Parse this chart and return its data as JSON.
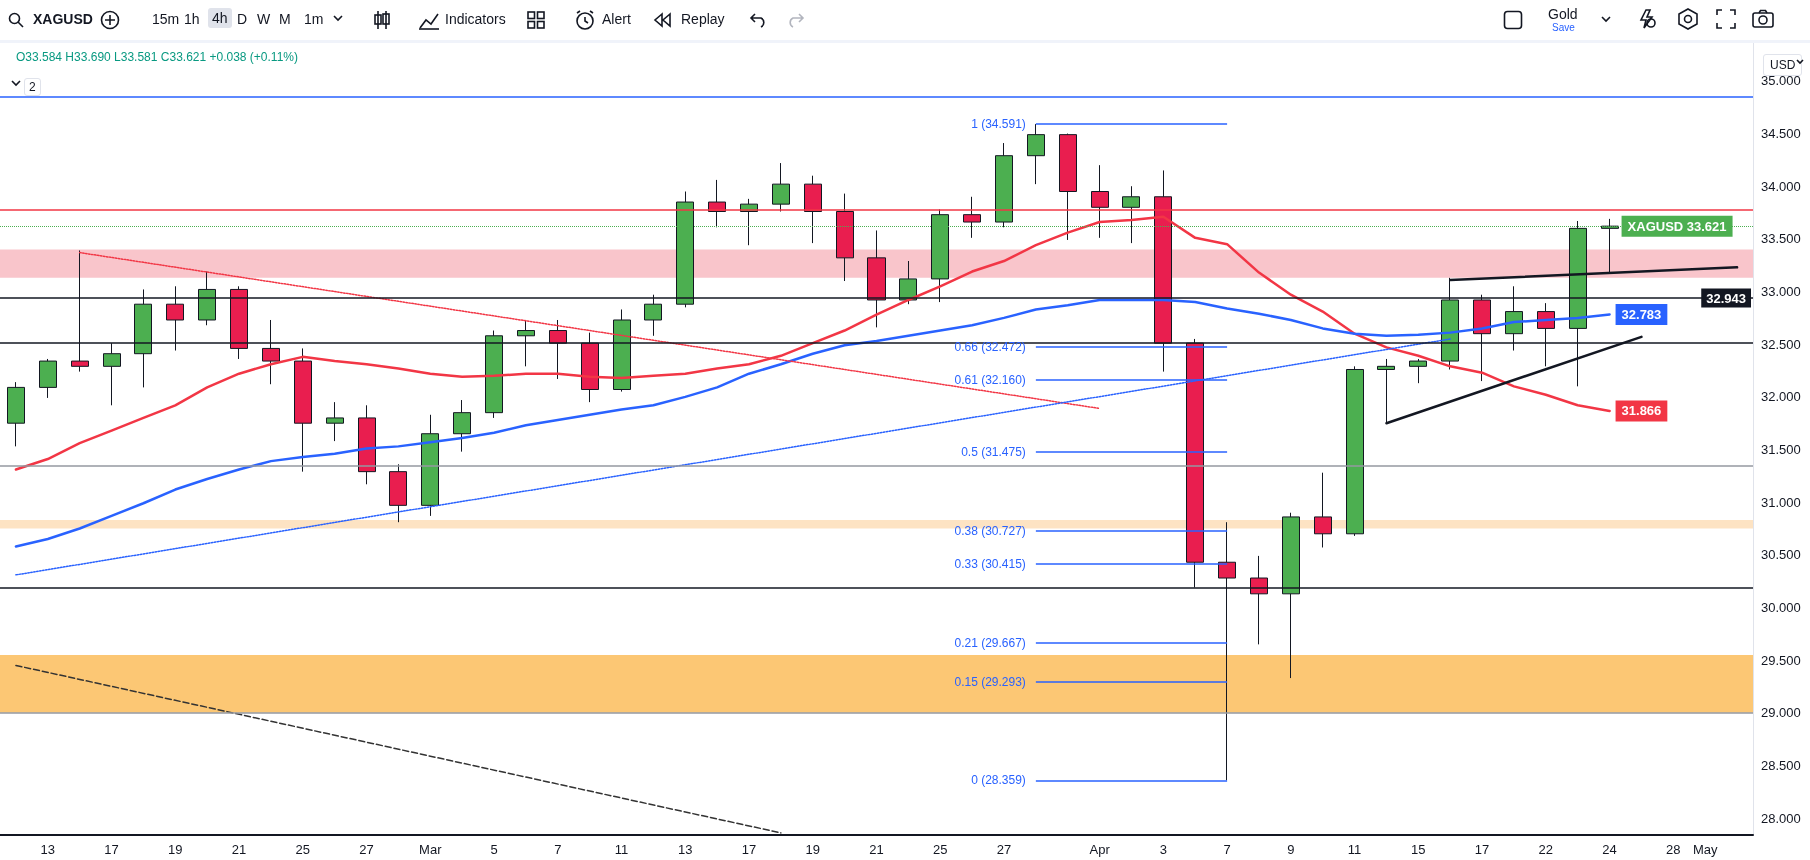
{
  "chart_data": {
    "type": "candlestick",
    "title": "XAGUSD",
    "subtitle": "O33.584 H33.690 L33.581 C33.621 +0.038 (+0.11%)",
    "categories": [
      null,
      "13",
      null,
      "17",
      null,
      "19",
      null,
      "21",
      null,
      "25",
      null,
      "27",
      null,
      "Mar",
      null,
      "5",
      null,
      "7",
      null,
      "11",
      null,
      "13",
      null,
      "17",
      null,
      "19",
      null,
      "21",
      null,
      "25",
      null,
      "27",
      null,
      null,
      "Apr",
      null,
      "3",
      null,
      "7",
      null,
      "9",
      null,
      "11",
      null,
      "15",
      null,
      "17",
      null,
      "22",
      null,
      "24",
      null,
      "28",
      "May",
      null
    ],
    "ylim": [
      27.84,
      35.36
    ],
    "yticks": [
      {
        "value": 28,
        "label": "28.000"
      },
      {
        "value": 28.5,
        "label": "28.500"
      },
      {
        "value": 29,
        "label": "29.000"
      },
      {
        "value": 29.5,
        "label": "29.500"
      },
      {
        "value": 30,
        "label": "30.000"
      },
      {
        "value": 30.5,
        "label": "30.500"
      },
      {
        "value": 31,
        "label": "31.000"
      },
      {
        "value": 31.5,
        "label": "31.500"
      },
      {
        "value": 32,
        "label": "32.000"
      },
      {
        "value": 32.5,
        "label": "32.500"
      },
      {
        "value": 33,
        "label": "33.000"
      },
      {
        "value": 33.5,
        "label": "33.500"
      },
      {
        "value": 34,
        "label": "34.000"
      },
      {
        "value": 34.5,
        "label": "34.500"
      },
      {
        "value": 35,
        "label": "35.000"
      }
    ],
    "series": [
      {
        "value_labels": [
          null,
          null,
          null,
          null,
          null,
          null,
          null,
          null,
          null,
          null,
          null,
          null,
          null,
          null,
          null,
          null,
          null,
          null,
          null,
          null,
          null,
          null,
          null,
          null,
          null,
          null,
          null,
          null,
          null,
          null,
          null,
          null,
          null,
          null,
          null,
          null,
          null,
          null,
          null,
          null,
          null,
          null,
          null,
          null,
          null,
          null,
          null,
          null,
          null,
          null,
          "XAGUSD 33.621",
          null,
          null,
          null,
          null
        ],
        "ohlc": [
          [
            31.75,
            32.14,
            31.53,
            32.09
          ],
          [
            32.09,
            32.36,
            31.99,
            32.34
          ],
          [
            32.34,
            33.39,
            32.24,
            32.29
          ],
          [
            32.29,
            32.51,
            31.92,
            32.41
          ],
          [
            32.41,
            33.02,
            32.09,
            32.88
          ],
          [
            32.88,
            33.05,
            32.44,
            32.73
          ],
          [
            32.73,
            33.19,
            32.68,
            33.02
          ],
          [
            33.02,
            33.05,
            32.36,
            32.46
          ],
          [
            32.46,
            32.73,
            32.12,
            32.34
          ],
          [
            32.34,
            32.46,
            31.29,
            31.75
          ],
          [
            31.75,
            31.95,
            31.58,
            31.8
          ],
          [
            31.8,
            31.92,
            31.17,
            31.29
          ],
          [
            31.29,
            31.36,
            30.81,
            30.97
          ],
          [
            30.97,
            31.83,
            30.87,
            31.65
          ],
          [
            31.65,
            31.97,
            31.48,
            31.85
          ],
          [
            31.85,
            32.63,
            31.8,
            32.58
          ],
          [
            32.58,
            32.73,
            32.29,
            32.63
          ],
          [
            32.63,
            32.73,
            32.17,
            32.51
          ],
          [
            32.51,
            32.61,
            31.95,
            32.07
          ],
          [
            32.07,
            32.83,
            32.05,
            32.73
          ],
          [
            32.73,
            32.97,
            32.58,
            32.88
          ],
          [
            32.88,
            33.95,
            32.85,
            33.85
          ],
          [
            33.85,
            34.06,
            33.61,
            33.76
          ],
          [
            33.76,
            33.88,
            33.44,
            33.83
          ],
          [
            33.83,
            34.22,
            33.76,
            34.02
          ],
          [
            34.02,
            34.1,
            33.46,
            33.76
          ],
          [
            33.76,
            33.93,
            33.1,
            33.32
          ],
          [
            33.32,
            33.58,
            32.66,
            32.92
          ],
          [
            32.92,
            33.29,
            32.88,
            33.12
          ],
          [
            33.12,
            33.78,
            32.9,
            33.73
          ],
          [
            33.73,
            33.9,
            33.51,
            33.66
          ],
          [
            33.66,
            34.41,
            33.61,
            34.29
          ],
          [
            34.29,
            34.59,
            34.02,
            34.49
          ],
          [
            34.49,
            34.5,
            33.49,
            33.95
          ],
          [
            33.95,
            34.2,
            33.51,
            33.8
          ],
          [
            33.8,
            34.0,
            33.46,
            33.9
          ],
          [
            33.9,
            34.15,
            32.24,
            32.51
          ],
          [
            32.51,
            32.55,
            30.19,
            30.43
          ],
          [
            30.43,
            30.81,
            28.359,
            30.28
          ],
          [
            30.28,
            30.49,
            29.65,
            30.13
          ],
          [
            30.13,
            30.9,
            29.33,
            30.86
          ],
          [
            30.86,
            31.28,
            30.57,
            30.7
          ],
          [
            30.7,
            32.29,
            30.68,
            32.26
          ],
          [
            32.26,
            32.36,
            31.76,
            32.29
          ],
          [
            32.29,
            32.36,
            32.13,
            32.34
          ],
          [
            32.34,
            33.13,
            32.26,
            32.92
          ],
          [
            32.92,
            32.97,
            32.15,
            32.6
          ],
          [
            32.6,
            33.05,
            32.44,
            32.81
          ],
          [
            32.81,
            32.89,
            32.29,
            32.65
          ],
          [
            32.65,
            33.67,
            32.1,
            33.6
          ],
          [
            33.6,
            33.69,
            33.18,
            33.621
          ],
          null,
          null,
          null,
          null
        ]
      },
      {
        "type": "line",
        "color": "#f23645",
        "values": [
          31.31,
          31.41,
          31.56,
          31.68,
          31.8,
          31.92,
          32.09,
          32.22,
          32.31,
          32.38,
          32.34,
          32.31,
          32.27,
          32.22,
          32.19,
          32.2,
          32.22,
          32.22,
          32.19,
          32.18,
          32.2,
          32.22,
          32.27,
          32.31,
          32.39,
          32.51,
          32.63,
          32.78,
          32.92,
          33.05,
          33.19,
          33.29,
          33.44,
          33.56,
          33.66,
          33.68,
          33.71,
          33.51,
          33.45,
          33.18,
          32.97,
          32.81,
          32.6,
          32.47,
          32.39,
          32.29,
          32.23,
          32.1,
          32.02,
          31.92,
          31.866,
          null,
          null,
          null,
          null
        ],
        "value_labels": [
          null,
          null,
          null,
          null,
          null,
          null,
          null,
          null,
          null,
          null,
          null,
          null,
          null,
          null,
          null,
          null,
          null,
          null,
          null,
          null,
          null,
          null,
          null,
          null,
          null,
          null,
          null,
          null,
          null,
          null,
          null,
          null,
          null,
          null,
          null,
          null,
          null,
          null,
          null,
          null,
          null,
          null,
          null,
          null,
          null,
          null,
          null,
          null,
          null,
          null,
          "31.866",
          null,
          null,
          null,
          null
        ]
      },
      {
        "type": "line",
        "color": "#2962ff",
        "values": [
          30.58,
          30.65,
          30.75,
          30.87,
          30.99,
          31.12,
          31.22,
          31.31,
          31.39,
          31.43,
          31.46,
          31.51,
          31.53,
          31.57,
          31.61,
          31.66,
          31.73,
          31.78,
          31.83,
          31.88,
          31.92,
          32.0,
          32.09,
          32.22,
          32.31,
          32.41,
          32.49,
          32.53,
          32.58,
          32.63,
          32.68,
          32.75,
          32.83,
          32.87,
          32.92,
          32.92,
          32.92,
          32.9,
          32.84,
          32.79,
          32.73,
          32.65,
          32.6,
          32.58,
          32.59,
          32.61,
          32.65,
          32.71,
          32.73,
          32.75,
          32.783,
          null,
          null,
          null,
          null
        ],
        "value_labels": [
          null,
          null,
          null,
          null,
          null,
          null,
          null,
          null,
          null,
          null,
          null,
          null,
          null,
          null,
          null,
          null,
          null,
          null,
          null,
          null,
          null,
          null,
          null,
          null,
          null,
          null,
          null,
          null,
          null,
          null,
          null,
          null,
          null,
          null,
          null,
          null,
          null,
          null,
          null,
          null,
          null,
          null,
          null,
          null,
          null,
          null,
          null,
          null,
          null,
          null,
          "32.783",
          null,
          null,
          null,
          null
        ]
      },
      {
        "type": "line",
        "color": "#f23645",
        "line_style": "dotted",
        "values": [
          null,
          null,
          33.37,
          null,
          null,
          null,
          null,
          null,
          null,
          null,
          null,
          null,
          null,
          null,
          null,
          null,
          null,
          null,
          null,
          null,
          null,
          null,
          null,
          null,
          null,
          null,
          null,
          null,
          null,
          null,
          null,
          null,
          null,
          null,
          31.89,
          null,
          null,
          null,
          null,
          null,
          null,
          null,
          null,
          null,
          null,
          null,
          null,
          null,
          null,
          null,
          null,
          null,
          null,
          null,
          null
        ]
      },
      {
        "type": "line",
        "color": "#2962ff",
        "line_style": "dotted",
        "values": [
          30.31,
          null,
          null,
          null,
          null,
          null,
          null,
          null,
          null,
          null,
          null,
          null,
          null,
          null,
          null,
          null,
          null,
          null,
          null,
          null,
          null,
          null,
          null,
          null,
          null,
          null,
          null,
          null,
          null,
          null,
          null,
          null,
          null,
          null,
          null,
          null,
          null,
          null,
          null,
          null,
          null,
          null,
          null,
          null,
          null,
          32.55,
          null,
          null,
          null,
          null,
          null,
          null,
          null,
          null,
          null
        ]
      },
      {
        "type": "line",
        "color": "#333333",
        "line_style": "dashed",
        "values": [
          29.45,
          null,
          null,
          null,
          null,
          null,
          null,
          null,
          null,
          null,
          null,
          null,
          null,
          null,
          null,
          null,
          null,
          null,
          null,
          null,
          null,
          null,
          null,
          null,
          27.86,
          null,
          null,
          null,
          null,
          null,
          null,
          null,
          null,
          null,
          null,
          null,
          null,
          null,
          null,
          null,
          null,
          null,
          null,
          null,
          null,
          null,
          null,
          null,
          null,
          null,
          null,
          null,
          null,
          null,
          null
        ]
      },
      {
        "type": "line",
        "color": "#131722",
        "values": [
          null,
          null,
          null,
          null,
          null,
          null,
          null,
          null,
          null,
          null,
          null,
          null,
          null,
          null,
          null,
          null,
          null,
          null,
          null,
          null,
          null,
          null,
          null,
          null,
          null,
          null,
          null,
          null,
          null,
          null,
          null,
          null,
          null,
          null,
          null,
          null,
          null,
          null,
          null,
          null,
          null,
          null,
          null,
          31.75,
          null,
          null,
          null,
          null,
          null,
          null,
          null,
          32.57,
          null,
          null,
          null
        ]
      },
      {
        "type": "line",
        "color": "#131722",
        "values": [
          null,
          null,
          null,
          null,
          null,
          null,
          null,
          null,
          null,
          null,
          null,
          null,
          null,
          null,
          null,
          null,
          null,
          null,
          null,
          null,
          null,
          null,
          null,
          null,
          null,
          null,
          null,
          null,
          null,
          null,
          null,
          null,
          null,
          null,
          null,
          null,
          null,
          null,
          null,
          null,
          null,
          null,
          null,
          null,
          null,
          33.11,
          null,
          null,
          null,
          null,
          null,
          null,
          null,
          null,
          33.23
        ]
      }
    ],
    "ref_lines": [
      {
        "axis": "y",
        "value": 34.85,
        "color": "#2962ff"
      },
      {
        "axis": "y",
        "value": 33.78,
        "color": "#f23645"
      },
      {
        "axis": "y",
        "value": 33.621,
        "color": "#4caf50",
        "line_style": "dotted"
      },
      {
        "axis": "y",
        "value": 32.943,
        "color": "#131722"
      },
      {
        "axis": "y",
        "value": 32.51,
        "color": "#131722"
      },
      {
        "axis": "y",
        "value": 31.35,
        "color": "#9598a1"
      },
      {
        "axis": "y",
        "value": 30.19,
        "color": "#131722"
      },
      {
        "axis": "y",
        "value": 29.0,
        "color": "#9598a1"
      },
      {
        "axis": "y",
        "value": 34.591,
        "label": "1 (34.591)",
        "color": "#2962ff"
      },
      {
        "axis": "y",
        "value": 32.472,
        "label": "0.66 (32.472)",
        "color": "#2962ff"
      },
      {
        "axis": "y",
        "value": 32.16,
        "label": "0.61 (32.160)",
        "color": "#2962ff"
      },
      {
        "axis": "y",
        "value": 31.475,
        "label": "0.5 (31.475)",
        "color": "#2962ff"
      },
      {
        "axis": "y",
        "value": 30.727,
        "label": "0.38 (30.727)",
        "color": "#2962ff"
      },
      {
        "axis": "y",
        "value": 30.415,
        "label": "0.33 (30.415)",
        "color": "#2962ff"
      },
      {
        "axis": "y",
        "value": 29.667,
        "label": "0.21 (29.667)",
        "color": "#2962ff"
      },
      {
        "axis": "y",
        "value": 29.293,
        "label": "0.15 (29.293)",
        "color": "#2962ff"
      },
      {
        "axis": "y",
        "value": 28.359,
        "label": "0 (28.359)",
        "color": "#2962ff"
      }
    ],
    "bands": [
      {
        "axis": "y",
        "from": 33.13,
        "to": 33.4,
        "color": "#f9c5cb"
      },
      {
        "axis": "y",
        "from": 29.0,
        "to": 29.55,
        "color": "#fcc774"
      },
      {
        "axis": "y",
        "from": 30.75,
        "to": 30.83,
        "color": "#fde3c3"
      }
    ],
    "annotations": [
      "15m",
      "1h",
      "4h",
      "D",
      "W",
      "M",
      "1m",
      "Indicators",
      "Alert",
      "Replay",
      "Gold",
      "Save",
      "USD",
      "2",
      {
        "text": "32.943",
        "y": 32.943
      }
    ]
  }
}
